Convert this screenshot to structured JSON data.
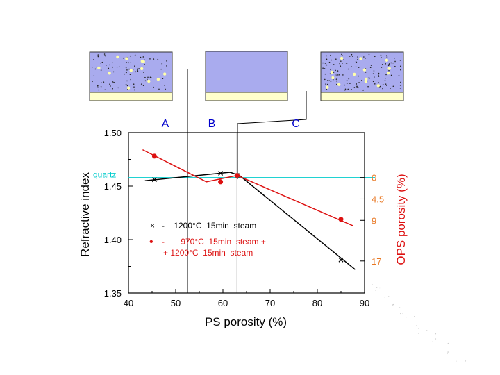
{
  "chart_data": {
    "type": "line",
    "title": "",
    "xlabel": "PS porosity  (%)",
    "ylabel": "Refractive index",
    "y2label": "OPS porosity  (%)",
    "xlim": [
      40,
      90
    ],
    "ylim": [
      1.35,
      1.5
    ],
    "x_ticks": [
      "40",
      "50",
      "60",
      "70",
      "80",
      "90"
    ],
    "y_ticks": [
      "1.35",
      "1.40",
      "1.45",
      "1.50"
    ],
    "x_tick_values": [
      40,
      50,
      60,
      70,
      80,
      90
    ],
    "y_tick_values": [
      1.35,
      1.4,
      1.45,
      1.5
    ],
    "right_axis": {
      "labels": [
        "0",
        "4.5",
        "9",
        "17"
      ],
      "at_refractive_index": [
        1.458,
        1.438,
        1.418,
        1.38
      ]
    },
    "reference_line": {
      "label": "quartz",
      "y": 1.458
    },
    "regions": [
      "A",
      "B",
      "C"
    ],
    "region_boundaries_x": [
      52.5,
      63
    ],
    "series": [
      {
        "name": "steam_1200",
        "marker": "x",
        "color": "#000000",
        "x": [
          45.5,
          59.5,
          63,
          85
        ],
        "y": [
          1.456,
          1.462,
          1.46,
          1.381
        ],
        "line_x": [
          43.5,
          61.5,
          63.5,
          88
        ],
        "line_y": [
          1.455,
          1.463,
          1.46,
          1.372
        ]
      },
      {
        "name": "steam_970_1200",
        "marker": "o",
        "color": "#dd1111",
        "x": [
          45.5,
          59.5,
          63,
          85
        ],
        "y": [
          1.478,
          1.454,
          1.46,
          1.419
        ],
        "line_x": [
          43,
          56.5,
          63,
          87.5
        ],
        "line_y": [
          1.484,
          1.454,
          1.46,
          1.413
        ]
      }
    ],
    "legend": [
      {
        "marker": "×",
        "text": "-    1200°C  15min  steam"
      },
      {
        "marker": "•",
        "text": "-       970°C  15min  steam +"
      },
      {
        "marker": "",
        "text": "+ 1200°C  15min  steam"
      }
    ]
  },
  "colors": {
    "axis": "#000000",
    "quartz": "#00cccc",
    "red": "#dd1111",
    "orange_axis": "#e87722",
    "region_label": "#0000cc",
    "panel_fill": "#a9abee",
    "panel_base": "#ffffcc"
  }
}
